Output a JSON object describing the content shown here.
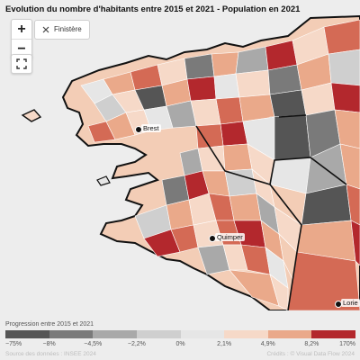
{
  "header": {
    "title": "Evolution du nombre d'habitants entre 2015 et 2021 - Population en 2021"
  },
  "controls": {
    "zoom_in": "+",
    "zoom_out": "−",
    "filter_chip": "Finistère"
  },
  "cities": [
    {
      "name": "Brest"
    },
    {
      "name": "Quimper"
    },
    {
      "name": "Lorie"
    }
  ],
  "legend": {
    "title": "Progression entre 2015 et 2021",
    "labels": [
      "−75%",
      "−8%",
      "−4,5%",
      "−2,2%",
      "0%",
      "2,1%",
      "4,9%",
      "8,2%",
      "170%"
    ],
    "colors": [
      "#555555",
      "#7a7a7a",
      "#a9a9a9",
      "#cfcfcf",
      "#e6e6e6",
      "#f6d9c8",
      "#eaa98a",
      "#d46a55",
      "#b3282d"
    ]
  },
  "footer": {
    "source": "Source des données : INSEE 2024",
    "credits": "Crédits : © Visual Data Flow 2024"
  }
}
